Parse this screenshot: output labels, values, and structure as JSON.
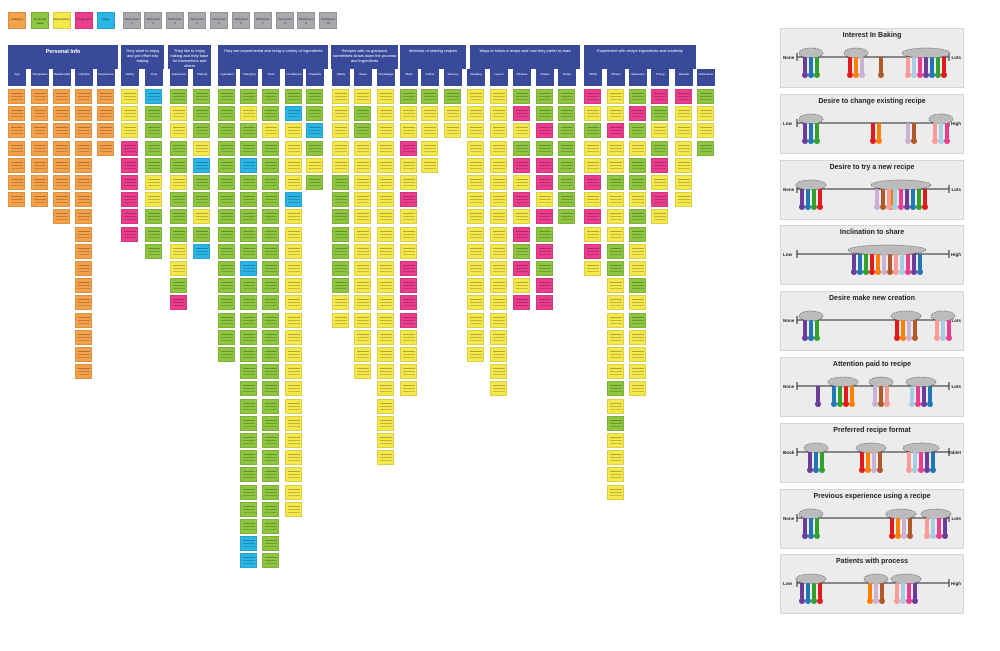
{
  "legend": [
    {
      "label": "Category",
      "color": "#f5a14a"
    },
    {
      "label": "Personal traits",
      "color": "#8ec63f"
    },
    {
      "label": "Expectations",
      "color": "#f5e84a"
    },
    {
      "label": "Challenges",
      "color": "#ec3c8c"
    },
    {
      "label": "Ideas",
      "color": "#29b6e6"
    },
    {
      "label": "Participant 1",
      "color": "#a7a9ac"
    },
    {
      "label": "Participant 2",
      "color": "#a7a9ac"
    },
    {
      "label": "Participant 3",
      "color": "#a7a9ac"
    },
    {
      "label": "Participant 4",
      "color": "#a7a9ac"
    },
    {
      "label": "Participant 5",
      "color": "#a7a9ac"
    },
    {
      "label": "Participant 6",
      "color": "#a7a9ac"
    },
    {
      "label": "Participant 7",
      "color": "#a7a9ac"
    },
    {
      "label": "Participant 8",
      "color": "#a7a9ac"
    },
    {
      "label": "Participant 9",
      "color": "#a7a9ac"
    },
    {
      "label": "Participant 10",
      "color": "#a7a9ac"
    }
  ],
  "groups": [
    {
      "title": "Personal Info",
      "big": true,
      "subs": [
        "Age",
        "Occupation",
        "Relationship",
        "Lifestyle",
        "Experience"
      ]
    },
    {
      "title": "They want to enjoy and put effort into baking",
      "big": false,
      "subs": [
        "Hobby",
        "Time",
        "Effort"
      ]
    },
    {
      "title": "They like to enjoy baking and they bake for themselves and others",
      "big": false,
      "subs": [
        "Enjoyment",
        "Sharing",
        "Recipe"
      ]
    },
    {
      "title": "They are experimental and bring a variety of ingredients",
      "big": false,
      "subs": [
        "Ingredient",
        "Changing",
        "Tools",
        "Confidence",
        "Creativity"
      ]
    },
    {
      "title": "Recipes with no guidance sometimes slows down the process and ingredients",
      "big": false,
      "subs": [
        "Clarity",
        "Steps",
        "Knowledge"
      ]
    },
    {
      "title": "Methods of sharing recipes",
      "big": false,
      "subs": [
        "Book",
        "Online",
        "Memory"
      ]
    },
    {
      "title": "Ways to follow a recipe and how they prefer to read",
      "big": false,
      "subs": [
        "Reading",
        "Layout",
        "Pictures",
        "Videos",
        "Notes"
      ]
    },
    {
      "title": "Experiment with recipe ingredients and creativity",
      "big": false,
      "subs": [
        "Tablet",
        "Photos",
        "Measures",
        "Timing",
        "Results",
        "Preference"
      ]
    }
  ],
  "panels": [
    {
      "title": "Interest In Baking",
      "low": "None",
      "high": "Lots"
    },
    {
      "title": "Desire to change existing recipe",
      "low": "Low",
      "high": "High"
    },
    {
      "title": "Desire to try a new recipe",
      "low": "None",
      "high": "Lots"
    },
    {
      "title": "Inclination to share",
      "low": "Low",
      "high": "High"
    },
    {
      "title": "Desire make new creation",
      "low": "None",
      "high": "Lots"
    },
    {
      "title": "Attention paid to recipe",
      "low": "None",
      "high": "Lots"
    },
    {
      "title": "Preferred recipe format",
      "low": "Book",
      "high": "Tablet"
    },
    {
      "title": "Previous experience using a recipe",
      "low": "None",
      "high": "Lots"
    },
    {
      "title": "Patients with process",
      "low": "Low",
      "high": "High"
    }
  ],
  "colors": {
    "header": "#3a4a9a",
    "orange": "#f5a14a",
    "green": "#8ec63f",
    "yellow": "#f5e84a",
    "pink": "#ec3c8c",
    "blue": "#29b6e6",
    "panel_bg": "#ececec",
    "participants": [
      "#6a3d9a",
      "#1f78b4",
      "#33a02c",
      "#e31a1c",
      "#ff7f00",
      "#cab2d6",
      "#b15928",
      "#fb9a99",
      "#a6cee3",
      "#ec3c8c"
    ]
  }
}
